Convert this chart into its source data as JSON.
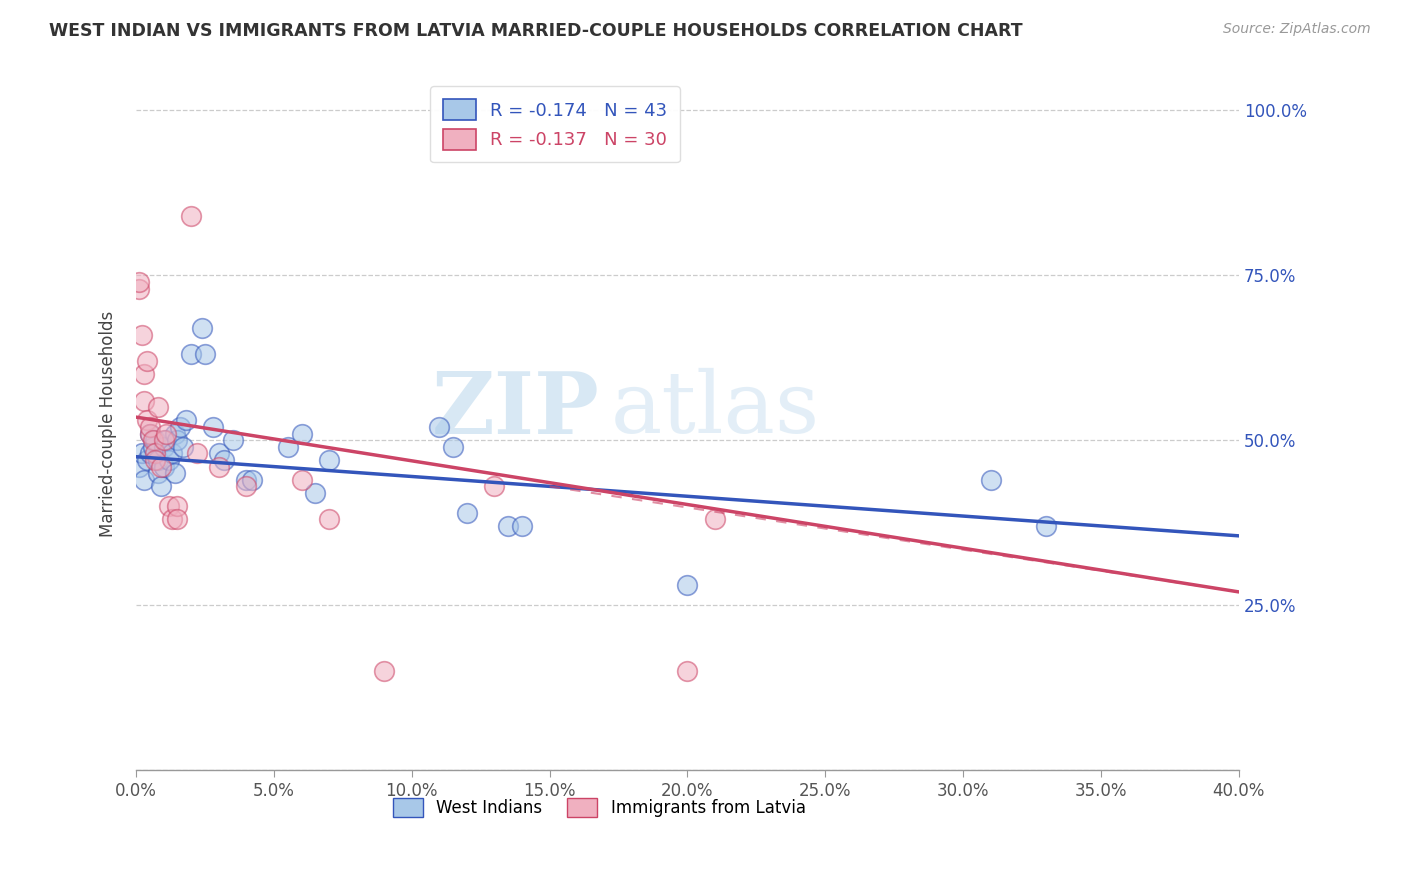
{
  "title": "WEST INDIAN VS IMMIGRANTS FROM LATVIA MARRIED-COUPLE HOUSEHOLDS CORRELATION CHART",
  "source": "Source: ZipAtlas.com",
  "ylabel": "Married-couple Households",
  "yticks": [
    0.0,
    0.25,
    0.5,
    0.75,
    1.0
  ],
  "ytick_labels": [
    "",
    "25.0%",
    "50.0%",
    "75.0%",
    "100.0%"
  ],
  "xticks": [
    0.0,
    0.05,
    0.1,
    0.15,
    0.2,
    0.25,
    0.3,
    0.35,
    0.4
  ],
  "background_color": "#ffffff",
  "watermark_zip": "ZIP",
  "watermark_atlas": "atlas",
  "legend_blue_label": "West Indians",
  "legend_pink_label": "Immigrants from Latvia",
  "blue_R": -0.174,
  "blue_N": 43,
  "pink_R": -0.137,
  "pink_N": 30,
  "blue_color": "#a8c8e8",
  "pink_color": "#f0b0c0",
  "blue_line_color": "#3355bb",
  "pink_line_color": "#cc4466",
  "blue_line": [
    [
      0.0,
      0.475
    ],
    [
      0.4,
      0.355
    ]
  ],
  "pink_line": [
    [
      0.0,
      0.535
    ],
    [
      0.4,
      0.27
    ]
  ],
  "pink_dashed_line": [
    [
      0.15,
      0.43
    ],
    [
      0.4,
      0.27
    ]
  ],
  "blue_scatter": [
    [
      0.001,
      0.46
    ],
    [
      0.002,
      0.48
    ],
    [
      0.003,
      0.44
    ],
    [
      0.004,
      0.47
    ],
    [
      0.005,
      0.48
    ],
    [
      0.005,
      0.51
    ],
    [
      0.006,
      0.49
    ],
    [
      0.007,
      0.5
    ],
    [
      0.008,
      0.45
    ],
    [
      0.008,
      0.47
    ],
    [
      0.009,
      0.43
    ],
    [
      0.01,
      0.46
    ],
    [
      0.01,
      0.49
    ],
    [
      0.011,
      0.5
    ],
    [
      0.012,
      0.47
    ],
    [
      0.013,
      0.48
    ],
    [
      0.014,
      0.51
    ],
    [
      0.014,
      0.45
    ],
    [
      0.015,
      0.5
    ],
    [
      0.016,
      0.52
    ],
    [
      0.017,
      0.49
    ],
    [
      0.018,
      0.53
    ],
    [
      0.02,
      0.63
    ],
    [
      0.024,
      0.67
    ],
    [
      0.025,
      0.63
    ],
    [
      0.028,
      0.52
    ],
    [
      0.03,
      0.48
    ],
    [
      0.032,
      0.47
    ],
    [
      0.035,
      0.5
    ],
    [
      0.04,
      0.44
    ],
    [
      0.042,
      0.44
    ],
    [
      0.055,
      0.49
    ],
    [
      0.06,
      0.51
    ],
    [
      0.065,
      0.42
    ],
    [
      0.07,
      0.47
    ],
    [
      0.11,
      0.52
    ],
    [
      0.115,
      0.49
    ],
    [
      0.12,
      0.39
    ],
    [
      0.135,
      0.37
    ],
    [
      0.14,
      0.37
    ],
    [
      0.2,
      0.28
    ],
    [
      0.31,
      0.44
    ],
    [
      0.33,
      0.37
    ]
  ],
  "pink_scatter": [
    [
      0.001,
      0.73
    ],
    [
      0.001,
      0.74
    ],
    [
      0.002,
      0.66
    ],
    [
      0.003,
      0.56
    ],
    [
      0.003,
      0.6
    ],
    [
      0.004,
      0.62
    ],
    [
      0.004,
      0.53
    ],
    [
      0.005,
      0.51
    ],
    [
      0.005,
      0.52
    ],
    [
      0.006,
      0.5
    ],
    [
      0.007,
      0.48
    ],
    [
      0.007,
      0.47
    ],
    [
      0.008,
      0.55
    ],
    [
      0.009,
      0.46
    ],
    [
      0.01,
      0.5
    ],
    [
      0.011,
      0.51
    ],
    [
      0.012,
      0.4
    ],
    [
      0.013,
      0.38
    ],
    [
      0.015,
      0.4
    ],
    [
      0.015,
      0.38
    ],
    [
      0.02,
      0.84
    ],
    [
      0.022,
      0.48
    ],
    [
      0.03,
      0.46
    ],
    [
      0.04,
      0.43
    ],
    [
      0.06,
      0.44
    ],
    [
      0.07,
      0.38
    ],
    [
      0.09,
      0.15
    ],
    [
      0.13,
      0.43
    ],
    [
      0.2,
      0.15
    ],
    [
      0.21,
      0.38
    ]
  ]
}
